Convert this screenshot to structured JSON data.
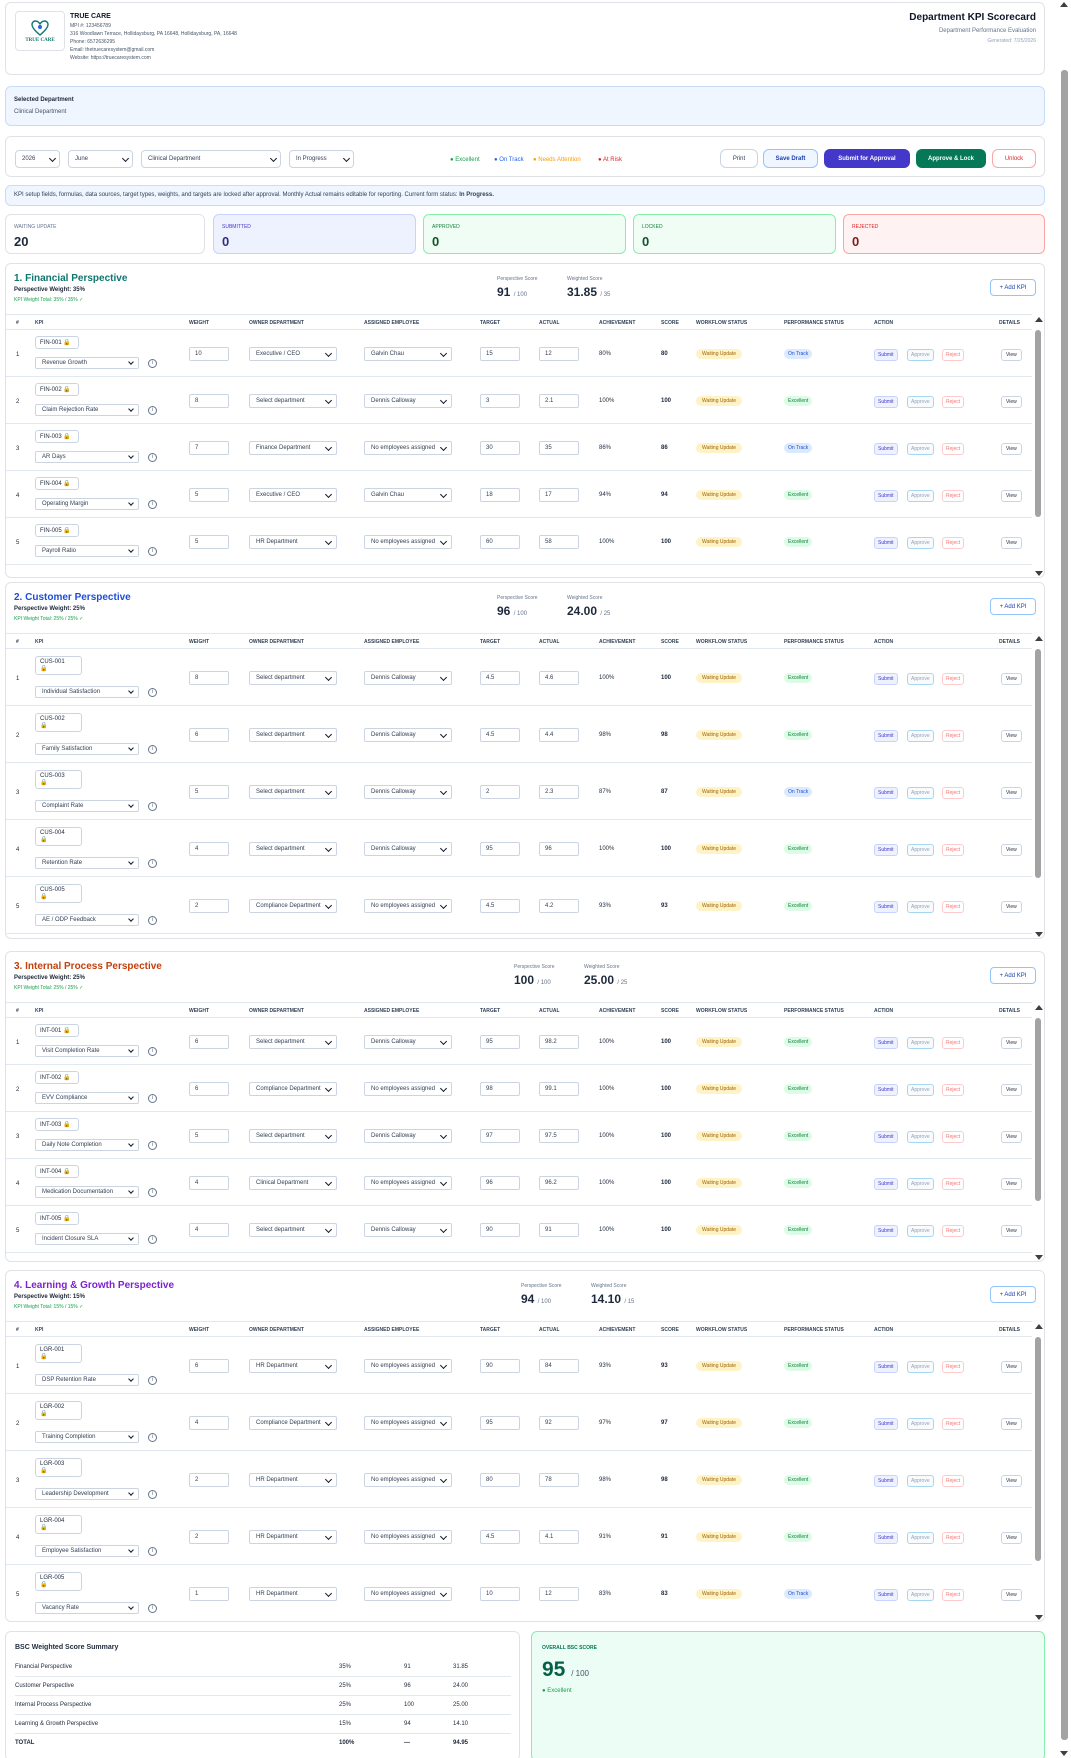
{
  "header": {
    "org_name": "TRUE CARE",
    "logo_text": "TRUE CARE",
    "mpi": "MPI #: 123456789",
    "address": "316 Woodlawn Terrace, Hollidaysburg, PA 16648, Hollidaysburg, PA, 16648",
    "phone": "Phone: 6572636295",
    "email": "Email: thetruecaresystem@gmail.com",
    "website": "Website: https://truecaresystem.com",
    "title": "Department KPI Scorecard",
    "subtitle": "Department Performance Evaluation",
    "generated": "Generated: 7/25/2026"
  },
  "selected_department": {
    "label": "Selected Department",
    "value": "Clinical Department"
  },
  "filters": {
    "year": "2026",
    "month": "June",
    "department": "Clinical Department",
    "status": "In Progress"
  },
  "legend": {
    "excellent": "● Excellent",
    "on_track": "● On Track",
    "needs_attention": "● Needs Attention",
    "at_risk": "● At Risk"
  },
  "buttons": {
    "print": "Print",
    "save_draft": "Save Draft",
    "submit_approval": "Submit for Approval",
    "approve_lock": "Approve & Lock",
    "unlock": "Unlock"
  },
  "notice": {
    "text": "KPI setup fields, formulas, data sources, target types, weights, and targets are locked after approval. Monthly Actual remains editable for reporting. Current form status: ",
    "status": "In Progress."
  },
  "status_cards": [
    {
      "label": "WAITING UPDATE",
      "value": "20"
    },
    {
      "label": "SUBMITTED",
      "value": "0"
    },
    {
      "label": "APPROVED",
      "value": "0"
    },
    {
      "label": "LOCKED",
      "value": "0"
    },
    {
      "label": "REJECTED",
      "value": "0"
    }
  ],
  "table_headers": {
    "num": "#",
    "kpi": "KPI",
    "weight": "WEIGHT",
    "owner": "OWNER DEPARTMENT",
    "employee": "ASSIGNED EMPLOYEE",
    "target": "TARGET",
    "actual": "ACTUAL",
    "achievement": "ACHIEVEMENT",
    "score": "SCORE",
    "workflow": "WORKFLOW STATUS",
    "performance": "PERFORMANCE STATUS",
    "action": "ACTION",
    "details": "DETAILS"
  },
  "labels": {
    "perspective_score": "Perspective Score",
    "weighted_score": "Weighted Score",
    "add_kpi": "+ Add KPI",
    "submit": "Submit",
    "approve": "Approve",
    "reject": "Reject",
    "view": "View",
    "info": "i",
    "lock": "🔒"
  },
  "colors": {
    "excellent": "#16a34a",
    "on_track": "#2563eb",
    "needs_attention": "#f59e0b",
    "at_risk": "#dc2626",
    "financial": "#0f766e",
    "customer": "#1d4ed8",
    "internal": "#c2410c",
    "learning": "#7e22ce"
  },
  "perspectives": [
    {
      "title": "1. Financial Perspective",
      "weight": "Perspective Weight: 35%",
      "kpi_total": "KPI Weight Total: 35% / 35% ✓",
      "score": "91",
      "score_max": "/ 100",
      "weighted": "31.85",
      "weighted_max": "/ 35",
      "rows": [
        {
          "n": "1",
          "code": "FIN-001",
          "name": "Revenue Growth",
          "weight": "10",
          "owner": "Executive / CEO",
          "employee": "Galvin Chau",
          "target": "15",
          "actual": "12",
          "achievement": "80%",
          "score": "80",
          "workflow": "Waiting Update",
          "performance": "On Track"
        },
        {
          "n": "2",
          "code": "FIN-002",
          "name": "Claim Rejection Rate",
          "weight": "8",
          "owner": "Select department",
          "employee": "Dennis Calloway",
          "target": "3",
          "actual": "2.1",
          "achievement": "100%",
          "score": "100",
          "workflow": "Waiting Update",
          "performance": "Excellent"
        },
        {
          "n": "3",
          "code": "FIN-003",
          "name": "AR Days",
          "weight": "7",
          "owner": "Finance Department",
          "employee": "No employees assigned",
          "target": "30",
          "actual": "35",
          "achievement": "86%",
          "score": "86",
          "workflow": "Waiting Update",
          "performance": "On Track"
        },
        {
          "n": "4",
          "code": "FIN-004",
          "name": "Operating Margin",
          "weight": "5",
          "owner": "Executive / CEO",
          "employee": "Galvin Chau",
          "target": "18",
          "actual": "17",
          "achievement": "94%",
          "score": "94",
          "workflow": "Waiting Update",
          "performance": "Excellent"
        },
        {
          "n": "5",
          "code": "FIN-005",
          "name": "Payroll Ratio",
          "weight": "5",
          "owner": "HR Department",
          "employee": "No employees assigned",
          "target": "60",
          "actual": "58",
          "achievement": "100%",
          "score": "100",
          "workflow": "Waiting Update",
          "performance": "Excellent"
        }
      ]
    },
    {
      "title": "2. Customer Perspective",
      "weight": "Perspective Weight: 25%",
      "kpi_total": "KPI Weight Total: 25% / 25% ✓",
      "score": "96",
      "score_max": "/ 100",
      "weighted": "24.00",
      "weighted_max": "/ 25",
      "rows": [
        {
          "n": "1",
          "code": "CUS-001",
          "name": "Individual Satisfaction",
          "weight": "8",
          "owner": "Select department",
          "employee": "Dennis Calloway",
          "target": "4.5",
          "actual": "4.6",
          "achievement": "100%",
          "score": "100",
          "workflow": "Waiting Update",
          "performance": "Excellent"
        },
        {
          "n": "2",
          "code": "CUS-002",
          "name": "Family Satisfaction",
          "weight": "6",
          "owner": "Select department",
          "employee": "Dennis Calloway",
          "target": "4.5",
          "actual": "4.4",
          "achievement": "98%",
          "score": "98",
          "workflow": "Waiting Update",
          "performance": "Excellent"
        },
        {
          "n": "3",
          "code": "CUS-003",
          "name": "Complaint Rate",
          "weight": "5",
          "owner": "Select department",
          "employee": "Dennis Calloway",
          "target": "2",
          "actual": "2.3",
          "achievement": "87%",
          "score": "87",
          "workflow": "Waiting Update",
          "performance": "On Track"
        },
        {
          "n": "4",
          "code": "CUS-004",
          "name": "Retention Rate",
          "weight": "4",
          "owner": "Select department",
          "employee": "Dennis Calloway",
          "target": "95",
          "actual": "96",
          "achievement": "100%",
          "score": "100",
          "workflow": "Waiting Update",
          "performance": "Excellent"
        },
        {
          "n": "5",
          "code": "CUS-005",
          "name": "AE / ODP Feedback",
          "weight": "2",
          "owner": "Compliance Department",
          "employee": "No employees assigned",
          "target": "4.5",
          "actual": "4.2",
          "achievement": "93%",
          "score": "93",
          "workflow": "Waiting Update",
          "performance": "Excellent"
        }
      ]
    },
    {
      "title": "3. Internal Process Perspective",
      "weight": "Perspective Weight: 25%",
      "kpi_total": "KPI Weight Total: 25% / 25% ✓",
      "score": "100",
      "score_max": "/ 100",
      "weighted": "25.00",
      "weighted_max": "/ 25",
      "rows": [
        {
          "n": "1",
          "code": "INT-001",
          "name": "Visit Completion Rate",
          "weight": "6",
          "owner": "Select department",
          "employee": "Dennis Calloway",
          "target": "95",
          "actual": "98.2",
          "achievement": "100%",
          "score": "100",
          "workflow": "Waiting Update",
          "performance": "Excellent"
        },
        {
          "n": "2",
          "code": "INT-002",
          "name": "EVV Compliance",
          "weight": "6",
          "owner": "Compliance Department",
          "employee": "No employees assigned",
          "target": "98",
          "actual": "99.1",
          "achievement": "100%",
          "score": "100",
          "workflow": "Waiting Update",
          "performance": "Excellent"
        },
        {
          "n": "3",
          "code": "INT-003",
          "name": "Daily Note Completion",
          "weight": "5",
          "owner": "Select department",
          "employee": "Dennis Calloway",
          "target": "97",
          "actual": "97.5",
          "achievement": "100%",
          "score": "100",
          "workflow": "Waiting Update",
          "performance": "Excellent"
        },
        {
          "n": "4",
          "code": "INT-004",
          "name": "Medication Documentation",
          "weight": "4",
          "owner": "Clinical Department",
          "employee": "No employees assigned",
          "target": "96",
          "actual": "96.2",
          "achievement": "100%",
          "score": "100",
          "workflow": "Waiting Update",
          "performance": "Excellent"
        },
        {
          "n": "5",
          "code": "INT-005",
          "name": "Incident Closure SLA",
          "weight": "4",
          "owner": "Select department",
          "employee": "Dennis Calloway",
          "target": "90",
          "actual": "91",
          "achievement": "100%",
          "score": "100",
          "workflow": "Waiting Update",
          "performance": "Excellent"
        }
      ]
    },
    {
      "title": "4. Learning & Growth Perspective",
      "weight": "Perspective Weight: 15%",
      "kpi_total": "KPI Weight Total: 15% / 15% ✓",
      "score": "94",
      "score_max": "/ 100",
      "weighted": "14.10",
      "weighted_max": "/ 15",
      "rows": [
        {
          "n": "1",
          "code": "LGR-001",
          "name": "DSP Retention Rate",
          "weight": "6",
          "owner": "HR Department",
          "employee": "No employees assigned",
          "target": "90",
          "actual": "84",
          "achievement": "93%",
          "score": "93",
          "workflow": "Waiting Update",
          "performance": "Excellent"
        },
        {
          "n": "2",
          "code": "LGR-002",
          "name": "Training Completion",
          "weight": "4",
          "owner": "Compliance Department",
          "employee": "No employees assigned",
          "target": "95",
          "actual": "92",
          "achievement": "97%",
          "score": "97",
          "workflow": "Waiting Update",
          "performance": "Excellent"
        },
        {
          "n": "3",
          "code": "LGR-003",
          "name": "Leadership Development",
          "weight": "2",
          "owner": "HR Department",
          "employee": "No employees assigned",
          "target": "80",
          "actual": "78",
          "achievement": "98%",
          "score": "98",
          "workflow": "Waiting Update",
          "performance": "Excellent"
        },
        {
          "n": "4",
          "code": "LGR-004",
          "name": "Employee Satisfaction",
          "weight": "2",
          "owner": "HR Department",
          "employee": "No employees assigned",
          "target": "4.5",
          "actual": "4.1",
          "achievement": "91%",
          "score": "91",
          "workflow": "Waiting Update",
          "performance": "Excellent"
        },
        {
          "n": "5",
          "code": "LGR-005",
          "name": "Vacancy Rate",
          "weight": "1",
          "owner": "HR Department",
          "employee": "No employees assigned",
          "target": "10",
          "actual": "12",
          "achievement": "83%",
          "score": "83",
          "workflow": "Waiting Update",
          "performance": "On Track"
        }
      ]
    }
  ],
  "summary": {
    "title": "BSC Weighted Score Summary",
    "rows": [
      {
        "name": "Financial Perspective",
        "weight": "35%",
        "score": "91",
        "weighted": "31.85"
      },
      {
        "name": "Customer Perspective",
        "weight": "25%",
        "score": "96",
        "weighted": "24.00"
      },
      {
        "name": "Internal Process Perspective",
        "weight": "25%",
        "score": "100",
        "weighted": "25.00"
      },
      {
        "name": "Learning & Growth Perspective",
        "weight": "15%",
        "score": "94",
        "weighted": "14.10"
      }
    ],
    "total": {
      "name": "TOTAL",
      "weight": "100%",
      "score": "—",
      "weighted": "94.95"
    }
  },
  "overall": {
    "label": "OVERALL BSC SCORE",
    "value": "95",
    "max": "/ 100",
    "grade": "● Excellent"
  }
}
